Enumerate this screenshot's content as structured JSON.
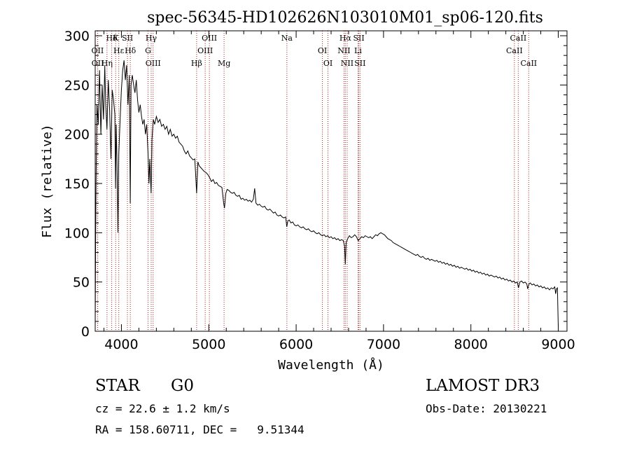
{
  "chart_data": {
    "type": "line",
    "title": "spec-56345-HD102626N103010M01_sp06-120.fits",
    "xlabel": "Wavelength (Å)",
    "ylabel": "Flux (relative)",
    "xlim": [
      3700,
      9100
    ],
    "ylim": [
      0,
      305
    ],
    "xticks": [
      4000,
      5000,
      6000,
      7000,
      8000,
      9000
    ],
    "yticks": [
      0,
      50,
      100,
      150,
      200,
      250,
      300
    ],
    "grid": false,
    "series": [
      {
        "name": "flux",
        "color": "#000000",
        "points": [
          [
            3700,
            5
          ],
          [
            3705,
            95
          ],
          [
            3710,
            150
          ],
          [
            3720,
            230
          ],
          [
            3735,
            210
          ],
          [
            3750,
            265
          ],
          [
            3765,
            200
          ],
          [
            3780,
            250
          ],
          [
            3795,
            215
          ],
          [
            3810,
            270
          ],
          [
            3820,
            230
          ],
          [
            3835,
            205
          ],
          [
            3850,
            255
          ],
          [
            3865,
            225
          ],
          [
            3880,
            175
          ],
          [
            3895,
            245
          ],
          [
            3910,
            235
          ],
          [
            3925,
            220
          ],
          [
            3933,
            145
          ],
          [
            3940,
            210
          ],
          [
            3950,
            170
          ],
          [
            3960,
            100
          ],
          [
            3970,
            180
          ],
          [
            3985,
            215
          ],
          [
            4000,
            245
          ],
          [
            4015,
            265
          ],
          [
            4030,
            275
          ],
          [
            4045,
            255
          ],
          [
            4060,
            270
          ],
          [
            4075,
            230
          ],
          [
            4090,
            260
          ],
          [
            4101,
            130
          ],
          [
            4110,
            250
          ],
          [
            4125,
            260
          ],
          [
            4140,
            250
          ],
          [
            4155,
            242
          ],
          [
            4170,
            255
          ],
          [
            4185,
            235
          ],
          [
            4200,
            222
          ],
          [
            4215,
            230
          ],
          [
            4230,
            218
          ],
          [
            4245,
            210
          ],
          [
            4260,
            215
          ],
          [
            4275,
            200
          ],
          [
            4290,
            210
          ],
          [
            4305,
            180
          ],
          [
            4315,
            150
          ],
          [
            4325,
            175
          ],
          [
            4340,
            140
          ],
          [
            4350,
            195
          ],
          [
            4365,
            215
          ],
          [
            4380,
            210
          ],
          [
            4400,
            218
          ],
          [
            4420,
            212
          ],
          [
            4440,
            215
          ],
          [
            4460,
            208
          ],
          [
            4480,
            210
          ],
          [
            4500,
            205
          ],
          [
            4520,
            208
          ],
          [
            4540,
            200
          ],
          [
            4560,
            205
          ],
          [
            4580,
            198
          ],
          [
            4600,
            200
          ],
          [
            4620,
            196
          ],
          [
            4640,
            198
          ],
          [
            4660,
            192
          ],
          [
            4680,
            190
          ],
          [
            4700,
            188
          ],
          [
            4720,
            183
          ],
          [
            4740,
            180
          ],
          [
            4760,
            183
          ],
          [
            4780,
            178
          ],
          [
            4800,
            176
          ],
          [
            4820,
            174
          ],
          [
            4840,
            175
          ],
          [
            4861,
            140
          ],
          [
            4875,
            172
          ],
          [
            4890,
            168
          ],
          [
            4910,
            166
          ],
          [
            4930,
            164
          ],
          [
            4950,
            162
          ],
          [
            4970,
            161
          ],
          [
            4990,
            159
          ],
          [
            5010,
            156
          ],
          [
            5030,
            152
          ],
          [
            5050,
            154
          ],
          [
            5070,
            150
          ],
          [
            5090,
            151
          ],
          [
            5110,
            148
          ],
          [
            5130,
            147
          ],
          [
            5150,
            146
          ],
          [
            5170,
            130
          ],
          [
            5180,
            125
          ],
          [
            5195,
            140
          ],
          [
            5210,
            144
          ],
          [
            5230,
            143
          ],
          [
            5250,
            141
          ],
          [
            5270,
            140
          ],
          [
            5290,
            141
          ],
          [
            5310,
            138
          ],
          [
            5330,
            137
          ],
          [
            5350,
            138
          ],
          [
            5370,
            134
          ],
          [
            5390,
            135
          ],
          [
            5410,
            133
          ],
          [
            5430,
            134
          ],
          [
            5450,
            132
          ],
          [
            5470,
            133
          ],
          [
            5490,
            131
          ],
          [
            5510,
            134
          ],
          [
            5525,
            145
          ],
          [
            5540,
            130
          ],
          [
            5560,
            128
          ],
          [
            5580,
            129
          ],
          [
            5600,
            127
          ],
          [
            5620,
            126
          ],
          [
            5640,
            127
          ],
          [
            5660,
            124
          ],
          [
            5680,
            123
          ],
          [
            5700,
            124
          ],
          [
            5720,
            122
          ],
          [
            5740,
            120
          ],
          [
            5760,
            121
          ],
          [
            5780,
            118
          ],
          [
            5800,
            117
          ],
          [
            5820,
            118
          ],
          [
            5840,
            116
          ],
          [
            5860,
            115
          ],
          [
            5880,
            116
          ],
          [
            5893,
            106
          ],
          [
            5905,
            112
          ],
          [
            5920,
            113
          ],
          [
            5940,
            110
          ],
          [
            5960,
            111
          ],
          [
            5980,
            108
          ],
          [
            6000,
            107
          ],
          [
            6020,
            108
          ],
          [
            6040,
            106
          ],
          [
            6060,
            105
          ],
          [
            6080,
            106
          ],
          [
            6100,
            104
          ],
          [
            6120,
            103
          ],
          [
            6140,
            104
          ],
          [
            6160,
            102
          ],
          [
            6180,
            101
          ],
          [
            6200,
            102
          ],
          [
            6220,
            100
          ],
          [
            6240,
            99
          ],
          [
            6260,
            100
          ],
          [
            6280,
            98
          ],
          [
            6300,
            97
          ],
          [
            6320,
            98
          ],
          [
            6340,
            96
          ],
          [
            6360,
            97
          ],
          [
            6380,
            95
          ],
          [
            6400,
            96
          ],
          [
            6420,
            94
          ],
          [
            6440,
            95
          ],
          [
            6460,
            93
          ],
          [
            6480,
            94
          ],
          [
            6500,
            92
          ],
          [
            6520,
            93
          ],
          [
            6540,
            92
          ],
          [
            6555,
            86
          ],
          [
            6563,
            68
          ],
          [
            6572,
            90
          ],
          [
            6590,
            94
          ],
          [
            6610,
            97
          ],
          [
            6630,
            95
          ],
          [
            6650,
            96
          ],
          [
            6670,
            98
          ],
          [
            6690,
            96
          ],
          [
            6710,
            92
          ],
          [
            6730,
            94
          ],
          [
            6750,
            96
          ],
          [
            6770,
            95
          ],
          [
            6790,
            97
          ],
          [
            6810,
            96
          ],
          [
            6830,
            95
          ],
          [
            6850,
            96
          ],
          [
            6870,
            94
          ],
          [
            6890,
            96
          ],
          [
            6910,
            98
          ],
          [
            6930,
            97
          ],
          [
            6950,
            99
          ],
          [
            6970,
            100
          ],
          [
            6990,
            99
          ],
          [
            7010,
            98
          ],
          [
            7030,
            96
          ],
          [
            7050,
            94
          ],
          [
            7070,
            93
          ],
          [
            7090,
            92
          ],
          [
            7110,
            90
          ],
          [
            7130,
            89
          ],
          [
            7150,
            88
          ],
          [
            7170,
            87
          ],
          [
            7190,
            86
          ],
          [
            7210,
            85
          ],
          [
            7230,
            84
          ],
          [
            7250,
            83
          ],
          [
            7270,
            82
          ],
          [
            7290,
            81
          ],
          [
            7310,
            80
          ],
          [
            7330,
            79
          ],
          [
            7350,
            78
          ],
          [
            7370,
            77
          ],
          [
            7390,
            78
          ],
          [
            7410,
            76
          ],
          [
            7430,
            75
          ],
          [
            7450,
            76
          ],
          [
            7470,
            74
          ],
          [
            7490,
            73
          ],
          [
            7510,
            74
          ],
          [
            7530,
            72
          ],
          [
            7550,
            73
          ],
          [
            7570,
            72
          ],
          [
            7590,
            71
          ],
          [
            7610,
            72
          ],
          [
            7630,
            70
          ],
          [
            7650,
            71
          ],
          [
            7670,
            69
          ],
          [
            7690,
            70
          ],
          [
            7710,
            68
          ],
          [
            7730,
            69
          ],
          [
            7750,
            67
          ],
          [
            7770,
            68
          ],
          [
            7790,
            66
          ],
          [
            7810,
            67
          ],
          [
            7830,
            65
          ],
          [
            7850,
            66
          ],
          [
            7870,
            64
          ],
          [
            7890,
            65
          ],
          [
            7910,
            64
          ],
          [
            7930,
            63
          ],
          [
            7950,
            64
          ],
          [
            7970,
            62
          ],
          [
            7990,
            63
          ],
          [
            8010,
            61
          ],
          [
            8030,
            62
          ],
          [
            8050,
            60
          ],
          [
            8070,
            61
          ],
          [
            8090,
            59
          ],
          [
            8110,
            60
          ],
          [
            8130,
            58
          ],
          [
            8150,
            59
          ],
          [
            8170,
            57
          ],
          [
            8190,
            58
          ],
          [
            8210,
            56
          ],
          [
            8230,
            57
          ],
          [
            8250,
            56
          ],
          [
            8270,
            55
          ],
          [
            8290,
            56
          ],
          [
            8310,
            54
          ],
          [
            8330,
            55
          ],
          [
            8350,
            53
          ],
          [
            8370,
            54
          ],
          [
            8390,
            52
          ],
          [
            8410,
            53
          ],
          [
            8430,
            51
          ],
          [
            8450,
            52
          ],
          [
            8470,
            50
          ],
          [
            8490,
            51
          ],
          [
            8510,
            49
          ],
          [
            8530,
            50
          ],
          [
            8545,
            44
          ],
          [
            8560,
            50
          ],
          [
            8580,
            51
          ],
          [
            8600,
            49
          ],
          [
            8620,
            50
          ],
          [
            8640,
            48
          ],
          [
            8650,
            43
          ],
          [
            8665,
            48
          ],
          [
            8680,
            49
          ],
          [
            8700,
            47
          ],
          [
            8720,
            48
          ],
          [
            8740,
            46
          ],
          [
            8760,
            47
          ],
          [
            8780,
            45
          ],
          [
            8800,
            46
          ],
          [
            8820,
            44
          ],
          [
            8840,
            45
          ],
          [
            8860,
            43
          ],
          [
            8880,
            44
          ],
          [
            8900,
            42
          ],
          [
            8920,
            44
          ],
          [
            8940,
            43
          ],
          [
            8960,
            45
          ],
          [
            8970,
            38
          ],
          [
            8980,
            43
          ],
          [
            8990,
            44
          ],
          [
            9000,
            5
          ]
        ]
      }
    ],
    "line_labels": [
      {
        "label": "Hδ",
        "wavelength": 3889
      },
      {
        "label": "OII",
        "wavelength": 3727
      },
      {
        "label": "OII",
        "wavelength": 3729
      },
      {
        "label": "K",
        "wavelength": 3934
      },
      {
        "label": "Hε",
        "wavelength": 3970
      },
      {
        "label": "Hη",
        "wavelength": 3835
      },
      {
        "label": "SII",
        "wavelength": 4069
      },
      {
        "label": "Hδ",
        "wavelength": 4102
      },
      {
        "label": "OIII",
        "wavelength": 4363
      },
      {
        "label": "Hγ",
        "wavelength": 4341
      },
      {
        "label": "G",
        "wavelength": 4305
      },
      {
        "label": "Hβ",
        "wavelength": 4861
      },
      {
        "label": "OIII",
        "wavelength": 5007
      },
      {
        "label": "OIII",
        "wavelength": 4959
      },
      {
        "label": "Mg",
        "wavelength": 5175
      },
      {
        "label": "Na",
        "wavelength": 5894
      },
      {
        "label": "OI",
        "wavelength": 6300
      },
      {
        "label": "OI",
        "wavelength": 6364
      },
      {
        "label": "Hα",
        "wavelength": 6563
      },
      {
        "label": "NII",
        "wavelength": 6548
      },
      {
        "label": "NII",
        "wavelength": 6584
      },
      {
        "label": "SII",
        "wavelength": 6717
      },
      {
        "label": "Li",
        "wavelength": 6708
      },
      {
        "label": "SII",
        "wavelength": 6731
      },
      {
        "label": "CaII",
        "wavelength": 8542
      },
      {
        "label": "CaII",
        "wavelength": 8498
      },
      {
        "label": "CaII",
        "wavelength": 8662
      }
    ]
  },
  "info": {
    "class": "STAR",
    "subclass": "G0",
    "survey": "LAMOST DR3",
    "cz": "cz = 22.6 ± 1.2 km/s",
    "obs_date": "Obs-Date: 20130221",
    "radec": "RA = 158.60711, DEC =   9.51344"
  }
}
